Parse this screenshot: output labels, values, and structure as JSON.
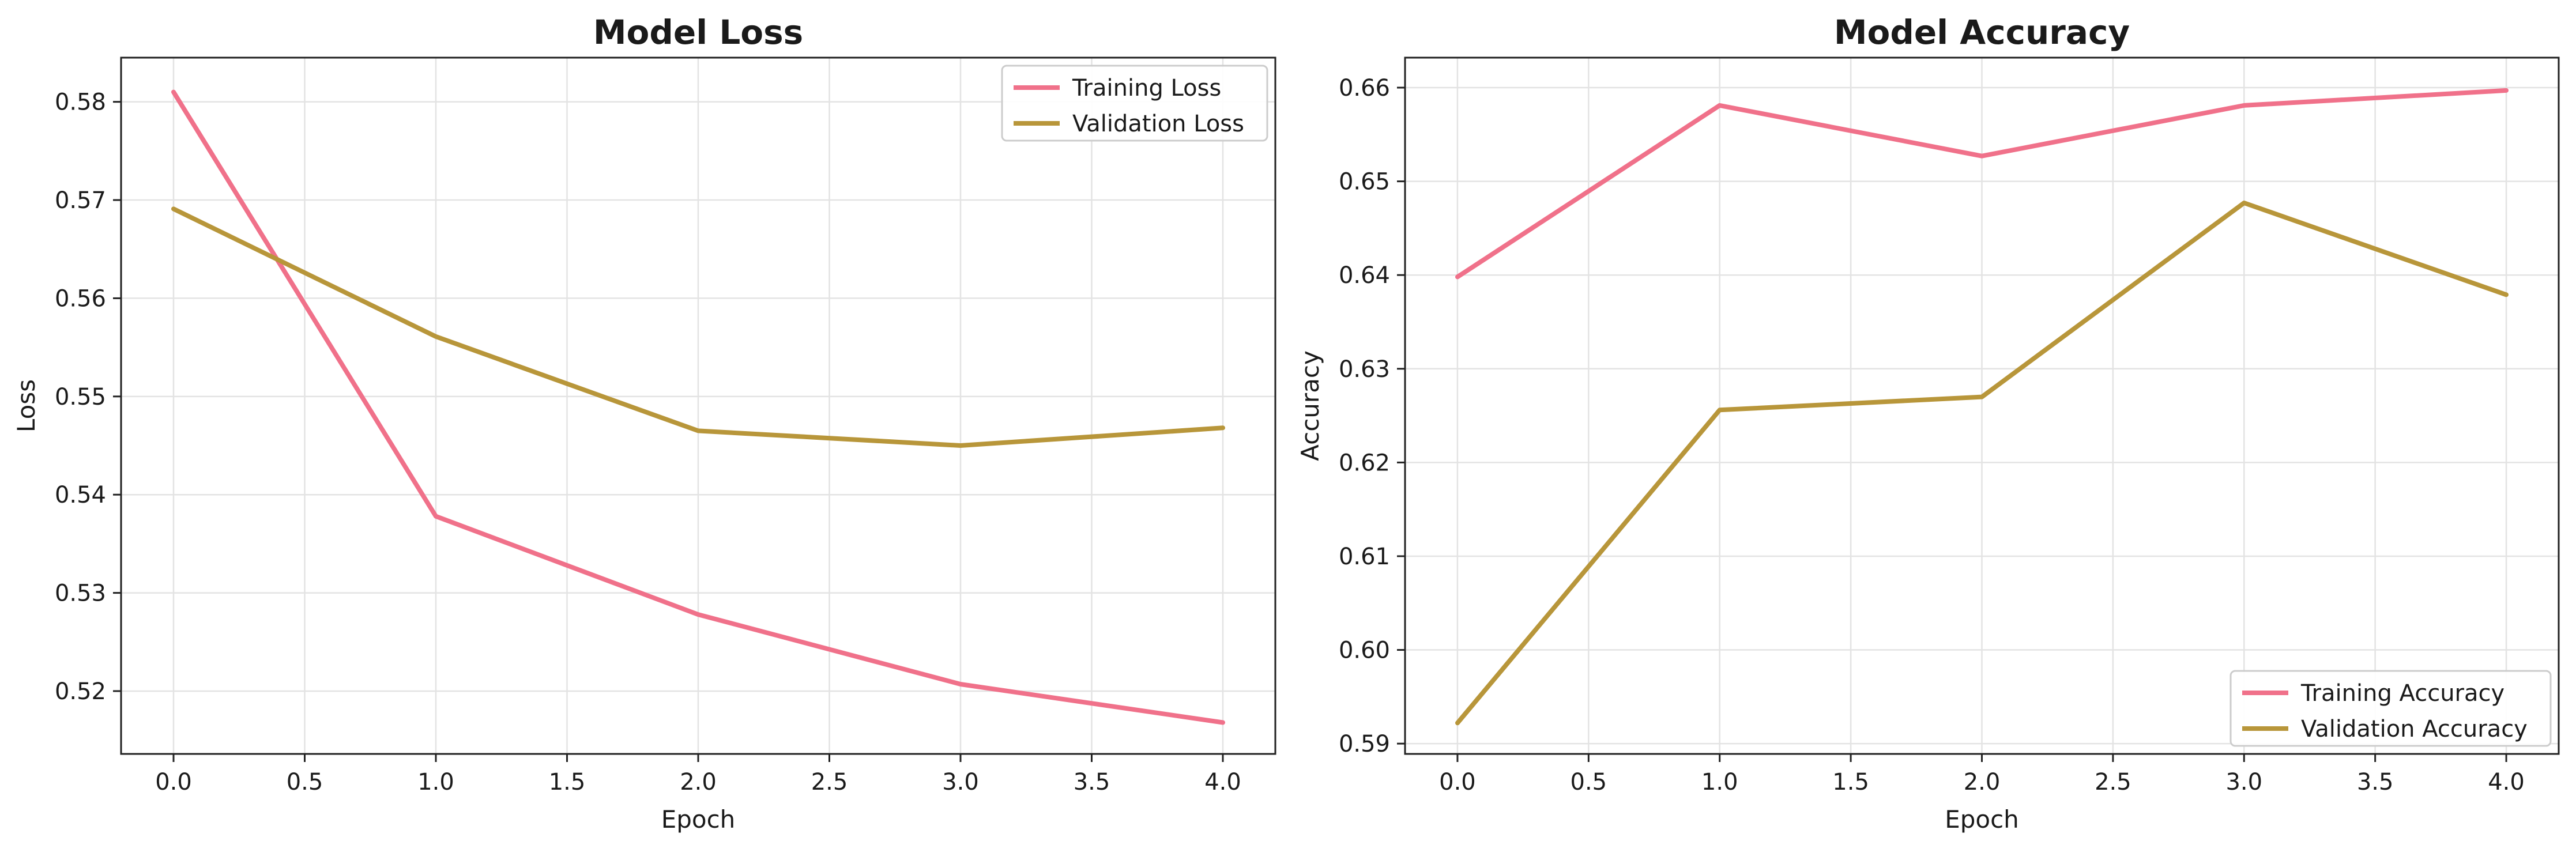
{
  "chart_data": [
    {
      "type": "line",
      "title": "Model Loss",
      "xlabel": "Epoch",
      "ylabel": "Loss",
      "x": [
        0,
        1,
        2,
        3,
        4
      ],
      "xlim": [
        -0.2,
        4.2
      ],
      "ylim": [
        0.5136,
        0.5845
      ],
      "xticks": [
        "0.0",
        "0.5",
        "1.0",
        "1.5",
        "2.0",
        "2.5",
        "3.0",
        "3.5",
        "4.0"
      ],
      "yticks": [
        "0.52",
        "0.53",
        "0.54",
        "0.55",
        "0.56",
        "0.57",
        "0.58"
      ],
      "grid": true,
      "legend_position": "top-right",
      "series": [
        {
          "name": "Training Loss",
          "color": "#f0718a",
          "values": [
            0.581,
            0.5378,
            0.5278,
            0.5207,
            0.5168
          ]
        },
        {
          "name": "Validation Loss",
          "color": "#b8963a",
          "values": [
            0.5691,
            0.5561,
            0.5465,
            0.545,
            0.5468
          ]
        }
      ]
    },
    {
      "type": "line",
      "title": "Model Accuracy",
      "xlabel": "Epoch",
      "ylabel": "Accuracy",
      "x": [
        0,
        1,
        2,
        3,
        4
      ],
      "xlim": [
        -0.2,
        4.2
      ],
      "ylim": [
        0.5889,
        0.6632
      ],
      "xticks": [
        "0.0",
        "0.5",
        "1.0",
        "1.5",
        "2.0",
        "2.5",
        "3.0",
        "3.5",
        "4.0"
      ],
      "yticks": [
        "0.59",
        "0.60",
        "0.61",
        "0.62",
        "0.63",
        "0.64",
        "0.65",
        "0.66"
      ],
      "grid": true,
      "legend_position": "bottom-right",
      "series": [
        {
          "name": "Training Accuracy",
          "color": "#f0718a",
          "values": [
            0.6398,
            0.6581,
            0.6527,
            0.6581,
            0.6597
          ]
        },
        {
          "name": "Validation Accuracy",
          "color": "#b8963a",
          "values": [
            0.5922,
            0.6256,
            0.627,
            0.6477,
            0.6379
          ]
        }
      ]
    }
  ]
}
